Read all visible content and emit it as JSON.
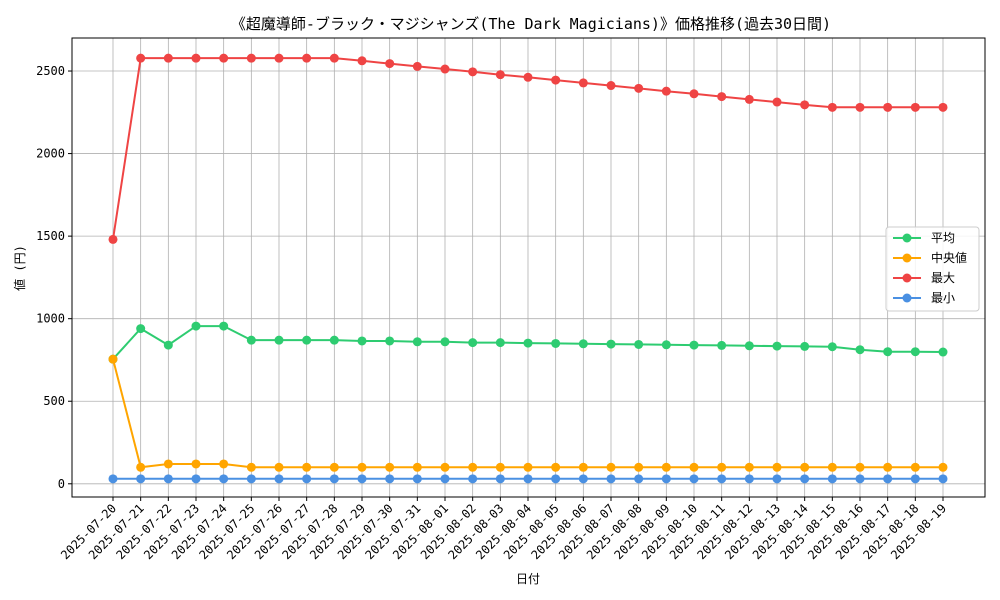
{
  "chart_data": {
    "type": "line",
    "title": "《超魔導師-ブラック・マジシャンズ(The Dark Magicians)》価格推移(過去30日間)",
    "xlabel": "日付",
    "ylabel": "値 (円)",
    "ylim": [
      -80,
      2700
    ],
    "yticks": [
      0,
      500,
      1000,
      1500,
      2000,
      2500
    ],
    "grid": true,
    "legend_position": "center-right",
    "categories": [
      "2025-07-20",
      "2025-07-21",
      "2025-07-22",
      "2025-07-23",
      "2025-07-24",
      "2025-07-25",
      "2025-07-26",
      "2025-07-27",
      "2025-07-28",
      "2025-07-29",
      "2025-07-30",
      "2025-07-31",
      "2025-08-01",
      "2025-08-02",
      "2025-08-03",
      "2025-08-04",
      "2025-08-05",
      "2025-08-06",
      "2025-08-07",
      "2025-08-08",
      "2025-08-09",
      "2025-08-10",
      "2025-08-11",
      "2025-08-12",
      "2025-08-13",
      "2025-08-14",
      "2025-08-15",
      "2025-08-16",
      "2025-08-17",
      "2025-08-18",
      "2025-08-19"
    ],
    "series": [
      {
        "name": "平均",
        "color": "#2ecc71",
        "values": [
          755,
          940,
          840,
          955,
          955,
          870,
          870,
          870,
          870,
          865,
          865,
          860,
          860,
          855,
          855,
          852,
          850,
          848,
          846,
          844,
          842,
          840,
          838,
          836,
          834,
          832,
          830,
          812,
          800,
          800,
          798
        ]
      },
      {
        "name": "中央値",
        "color": "#ffa500",
        "values": [
          755,
          100,
          120,
          120,
          120,
          100,
          100,
          100,
          100,
          100,
          100,
          100,
          100,
          100,
          100,
          100,
          100,
          100,
          100,
          100,
          100,
          100,
          100,
          100,
          100,
          100,
          100,
          100,
          100,
          100,
          100
        ]
      },
      {
        "name": "最大",
        "color": "#ef4444",
        "values": [
          1480,
          2578,
          2578,
          2578,
          2578,
          2578,
          2578,
          2578,
          2578,
          2562,
          2545,
          2528,
          2512,
          2495,
          2478,
          2462,
          2445,
          2428,
          2412,
          2395,
          2378,
          2362,
          2345,
          2328,
          2312,
          2295,
          2280,
          2280,
          2280,
          2280,
          2280
        ]
      },
      {
        "name": "最小",
        "color": "#4a90e2",
        "values": [
          30,
          30,
          30,
          30,
          30,
          30,
          30,
          30,
          30,
          30,
          30,
          30,
          30,
          30,
          30,
          30,
          30,
          30,
          30,
          30,
          30,
          30,
          30,
          30,
          30,
          30,
          30,
          30,
          30,
          30,
          30
        ]
      }
    ]
  }
}
